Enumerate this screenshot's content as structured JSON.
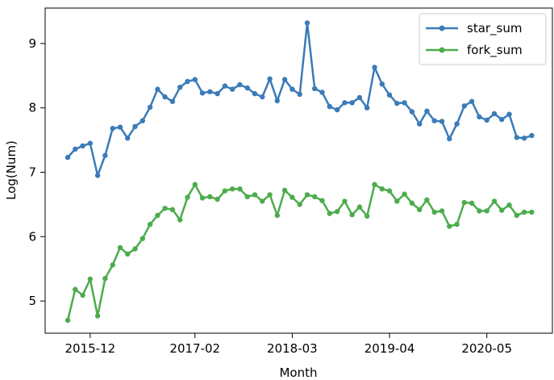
{
  "chart_data": {
    "type": "line",
    "xlabel": "Month",
    "ylabel": "Log(Num)",
    "title": "",
    "xlim": [
      0,
      61
    ],
    "ylim": [
      4.5,
      9.55
    ],
    "x_tick_labels": [
      {
        "index": 3,
        "label": "2015-12"
      },
      {
        "index": 17,
        "label": "2017-02"
      },
      {
        "index": 30,
        "label": "2018-03"
      },
      {
        "index": 43,
        "label": "2019-04"
      },
      {
        "index": 56,
        "label": "2020-05"
      }
    ],
    "y_ticks": [
      5,
      6,
      7,
      8,
      9
    ],
    "grid": false,
    "legend_position": "top-right",
    "series": [
      {
        "name": "star_sum",
        "color": "#3a7bb8",
        "values": [
          7.23,
          7.36,
          7.41,
          7.45,
          6.95,
          7.26,
          7.68,
          7.7,
          7.53,
          7.71,
          7.8,
          8.01,
          8.29,
          8.17,
          8.1,
          8.32,
          8.41,
          8.44,
          8.23,
          8.25,
          8.22,
          8.34,
          8.29,
          8.36,
          8.31,
          8.22,
          8.17,
          8.45,
          8.11,
          8.44,
          8.29,
          8.21,
          9.32,
          8.3,
          8.24,
          8.02,
          7.97,
          8.08,
          8.08,
          8.16,
          8.0,
          8.63,
          8.37,
          8.2,
          8.07,
          8.08,
          7.94,
          7.75,
          7.95,
          7.8,
          7.79,
          7.52,
          7.75,
          8.03,
          8.1,
          7.86,
          7.81,
          7.91,
          7.82,
          7.9,
          7.54,
          7.53,
          7.57
        ]
      },
      {
        "name": "fork_sum",
        "color": "#4cac4c",
        "values": [
          4.7,
          5.18,
          5.09,
          5.34,
          4.77,
          5.35,
          5.56,
          5.83,
          5.73,
          5.81,
          5.97,
          6.19,
          6.33,
          6.44,
          6.42,
          6.26,
          6.61,
          6.81,
          6.6,
          6.62,
          6.58,
          6.71,
          6.74,
          6.74,
          6.62,
          6.65,
          6.55,
          6.65,
          6.33,
          6.72,
          6.61,
          6.5,
          6.65,
          6.62,
          6.56,
          6.36,
          6.39,
          6.55,
          6.34,
          6.46,
          6.32,
          6.81,
          6.74,
          6.71,
          6.55,
          6.66,
          6.52,
          6.42,
          6.57,
          6.38,
          6.4,
          6.16,
          6.19,
          6.53,
          6.52,
          6.4,
          6.4,
          6.55,
          6.41,
          6.49,
          6.33,
          6.38,
          6.38
        ]
      }
    ]
  }
}
